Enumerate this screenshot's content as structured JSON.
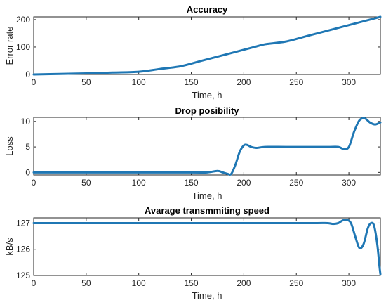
{
  "line_color": "#1f77b4",
  "chart_data": [
    {
      "type": "line",
      "title": "Accuracy",
      "xlabel": "Time, h",
      "ylabel": "Error rate",
      "xlim": [
        0,
        330
      ],
      "ylim": [
        0,
        210
      ],
      "xticks": [
        0,
        50,
        100,
        150,
        200,
        250,
        300
      ],
      "yticks": [
        0,
        100,
        200
      ],
      "grid": false,
      "series": [
        {
          "x": [
            0,
            25,
            50,
            75,
            100,
            120,
            140,
            160,
            180,
            200,
            210,
            220,
            240,
            260,
            280,
            300,
            320,
            330
          ],
          "y": [
            0,
            2,
            4,
            7,
            10,
            20,
            30,
            50,
            70,
            90,
            100,
            110,
            120,
            140,
            160,
            180,
            200,
            210
          ]
        }
      ]
    },
    {
      "type": "line",
      "title": "Drop posibility",
      "xlabel": "Time, h",
      "ylabel": "Loss",
      "xlim": [
        0,
        330
      ],
      "ylim": [
        -0.5,
        10.8
      ],
      "xticks": [
        0,
        50,
        100,
        150,
        200,
        250,
        300
      ],
      "yticks": [
        0,
        5,
        10
      ],
      "grid": false,
      "series": [
        {
          "x": [
            0,
            50,
            100,
            150,
            165,
            175,
            180,
            185,
            188,
            192,
            196,
            200,
            203,
            207,
            212,
            220,
            240,
            260,
            280,
            290,
            295,
            300,
            305,
            310,
            315,
            320,
            325,
            330
          ],
          "y": [
            0,
            0,
            0,
            0,
            0,
            0.3,
            0,
            -0.3,
            -0.3,
            1.5,
            4.0,
            5.3,
            5.4,
            5.0,
            4.8,
            5.0,
            5.0,
            5.0,
            5.0,
            5.0,
            4.6,
            5.0,
            8.0,
            10.2,
            10.6,
            9.8,
            9.4,
            9.8
          ]
        }
      ]
    },
    {
      "type": "line",
      "title": "Avarage transmmiting speed",
      "xlabel": "Time, h",
      "ylabel": "kB/s",
      "xlim": [
        0,
        330
      ],
      "ylim": [
        125,
        127.2
      ],
      "xticks": [
        0,
        50,
        100,
        150,
        200,
        250,
        300
      ],
      "yticks": [
        125,
        126,
        127
      ],
      "grid": false,
      "series": [
        {
          "x": [
            0,
            50,
            100,
            150,
            200,
            250,
            270,
            280,
            285,
            290,
            294,
            298,
            302,
            306,
            310,
            314,
            318,
            321,
            324,
            327,
            329,
            330
          ],
          "y": [
            127,
            127,
            127,
            127,
            127,
            127,
            127,
            127,
            126.97,
            127,
            127.1,
            127.12,
            127,
            126.5,
            126.05,
            126.2,
            126.8,
            127.0,
            126.9,
            126.2,
            125.4,
            125.05
          ]
        }
      ]
    }
  ]
}
